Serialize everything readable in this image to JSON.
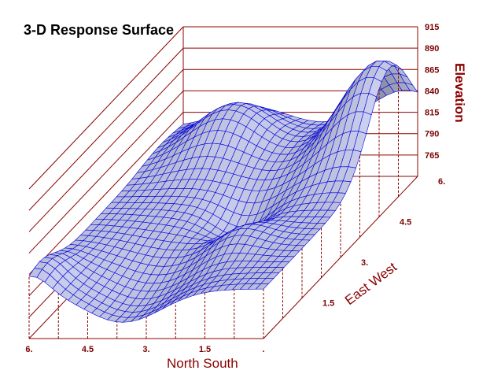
{
  "chart_data": {
    "type": "surface",
    "title": "3-D Response Surface",
    "z_axis": {
      "label": "Elevation",
      "ticks": [
        "915",
        "890",
        "865",
        "840",
        "815",
        "790",
        "765"
      ],
      "range": [
        740,
        915
      ]
    },
    "x_axis": {
      "label": "North South",
      "ticks": [
        "6.",
        "4.5",
        "3.",
        "1.5",
        "."
      ],
      "range": [
        0,
        6
      ]
    },
    "y_axis": {
      "label": "East West",
      "ticks": [
        "1.5",
        "3.",
        "4.5",
        "6."
      ],
      "range": [
        0,
        6
      ]
    },
    "grid": true,
    "colors": {
      "axis": "#8b0000",
      "mesh": "#0000e0",
      "fill": "#b8bcd8"
    }
  }
}
